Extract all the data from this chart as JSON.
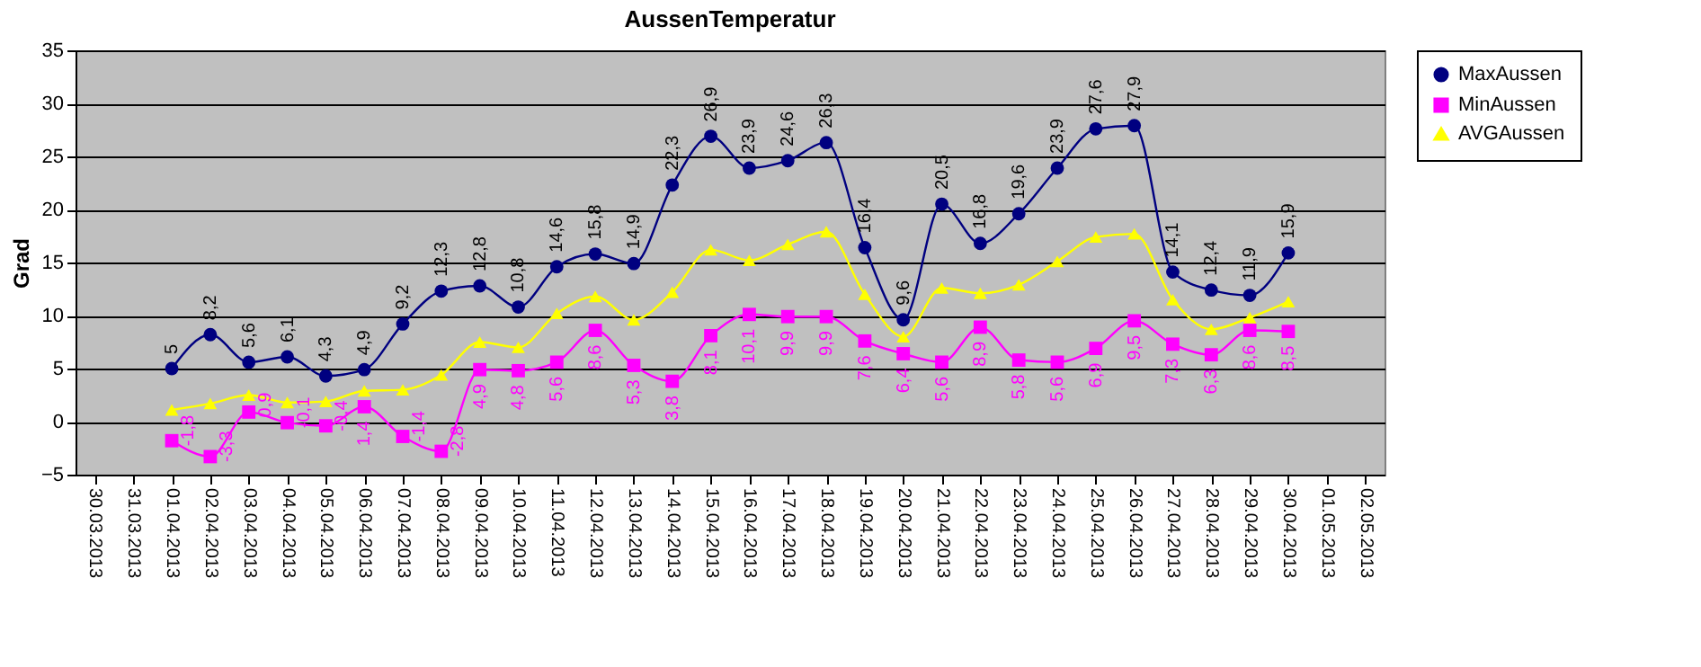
{
  "chart_data": {
    "type": "line",
    "title": "AussenTemperatur",
    "ylabel": "Grad",
    "categories": [
      "30.03.2013",
      "31.03.2013",
      "01.04.2013",
      "02.04.2013",
      "03.04.2013",
      "04.04.2013",
      "05.04.2013",
      "06.04.2013",
      "07.04.2013",
      "08.04.2013",
      "09.04.2013",
      "10.04.2013",
      "11.04.2013",
      "12.04.2013",
      "13.04.2013",
      "14.04.2013",
      "15.04.2013",
      "16.04.2013",
      "17.04.2013",
      "18.04.2013",
      "19.04.2013",
      "20.04.2013",
      "21.04.2013",
      "22.04.2013",
      "23.04.2013",
      "24.04.2013",
      "25.04.2013",
      "26.04.2013",
      "27.04.2013",
      "28.04.2013",
      "29.04.2013",
      "30.04.2013",
      "01.05.2013",
      "02.05.2013"
    ],
    "series": [
      {
        "name": "MaxAussen",
        "color": "#000080",
        "marker": "circle",
        "values": [
          null,
          null,
          5,
          8.2,
          5.6,
          6.1,
          4.3,
          4.9,
          9.2,
          12.3,
          12.8,
          10.8,
          14.6,
          15.8,
          14.9,
          22.3,
          26.9,
          23.9,
          24.6,
          26.3,
          16.4,
          9.6,
          20.5,
          16.8,
          19.6,
          23.9,
          27.6,
          27.9,
          14.1,
          12.4,
          11.9,
          15.9,
          null,
          null
        ],
        "value_labels": [
          null,
          null,
          "5",
          "8,2",
          "5,6",
          "6,1",
          "4,3",
          "4,9",
          "9,2",
          "12,3",
          "12,8",
          "10,8",
          "14,6",
          "15,8",
          "14,9",
          "22,3",
          "26,9",
          "23,9",
          "24,6",
          "26,3",
          "16,4",
          "9,6",
          "20,5",
          "16,8",
          "19,6",
          "23,9",
          "27,6",
          "27,9",
          "14,1",
          "12,4",
          "11,9",
          "15,9",
          null,
          null
        ]
      },
      {
        "name": "MinAussen",
        "color": "#ff00ff",
        "marker": "square",
        "values": [
          null,
          null,
          -1.8,
          -3.3,
          0.9,
          -0.1,
          -0.4,
          1.4,
          -1.4,
          -2.8,
          4.9,
          4.8,
          5.6,
          8.6,
          5.3,
          3.8,
          8.1,
          10.1,
          9.9,
          9.9,
          7.6,
          6.4,
          5.6,
          8.9,
          5.8,
          5.6,
          6.9,
          9.5,
          7.3,
          6.3,
          8.6,
          8.5,
          null,
          null
        ],
        "value_labels": [
          null,
          null,
          "-1,8",
          "-3,3",
          "0,9",
          "-0,1",
          "-0,4",
          "1,4",
          "-1,4",
          "-2,8",
          "4,9",
          "4,8",
          "5,6",
          "8,6",
          "5,3",
          "3,8",
          "8,1",
          "10,1",
          "9,9",
          "9,9",
          "7,6",
          "6,4",
          "5,6",
          "8,9",
          "5,8",
          "5,6",
          "6,9",
          "9,5",
          "7,3",
          "6,3",
          "8,6",
          "8,5",
          null,
          null
        ]
      },
      {
        "name": "AVGAussen",
        "color": "#ffff00",
        "marker": "triangle",
        "values": [
          null,
          null,
          1.1,
          1.7,
          2.5,
          1.8,
          1.9,
          2.9,
          3.0,
          4.4,
          7.5,
          7.0,
          10.2,
          11.8,
          9.6,
          12.2,
          16.2,
          15.2,
          16.7,
          17.9,
          12.0,
          8.0,
          12.6,
          12.1,
          12.9,
          15.1,
          17.4,
          17.7,
          11.5,
          8.7,
          9.8,
          11.3,
          null,
          null
        ]
      }
    ],
    "ylim": [
      -5,
      35
    ],
    "yticks": [
      -5,
      0,
      5,
      10,
      15,
      20,
      25,
      30,
      35
    ],
    "grid": "y",
    "legend": "right",
    "line_style": "solid"
  }
}
